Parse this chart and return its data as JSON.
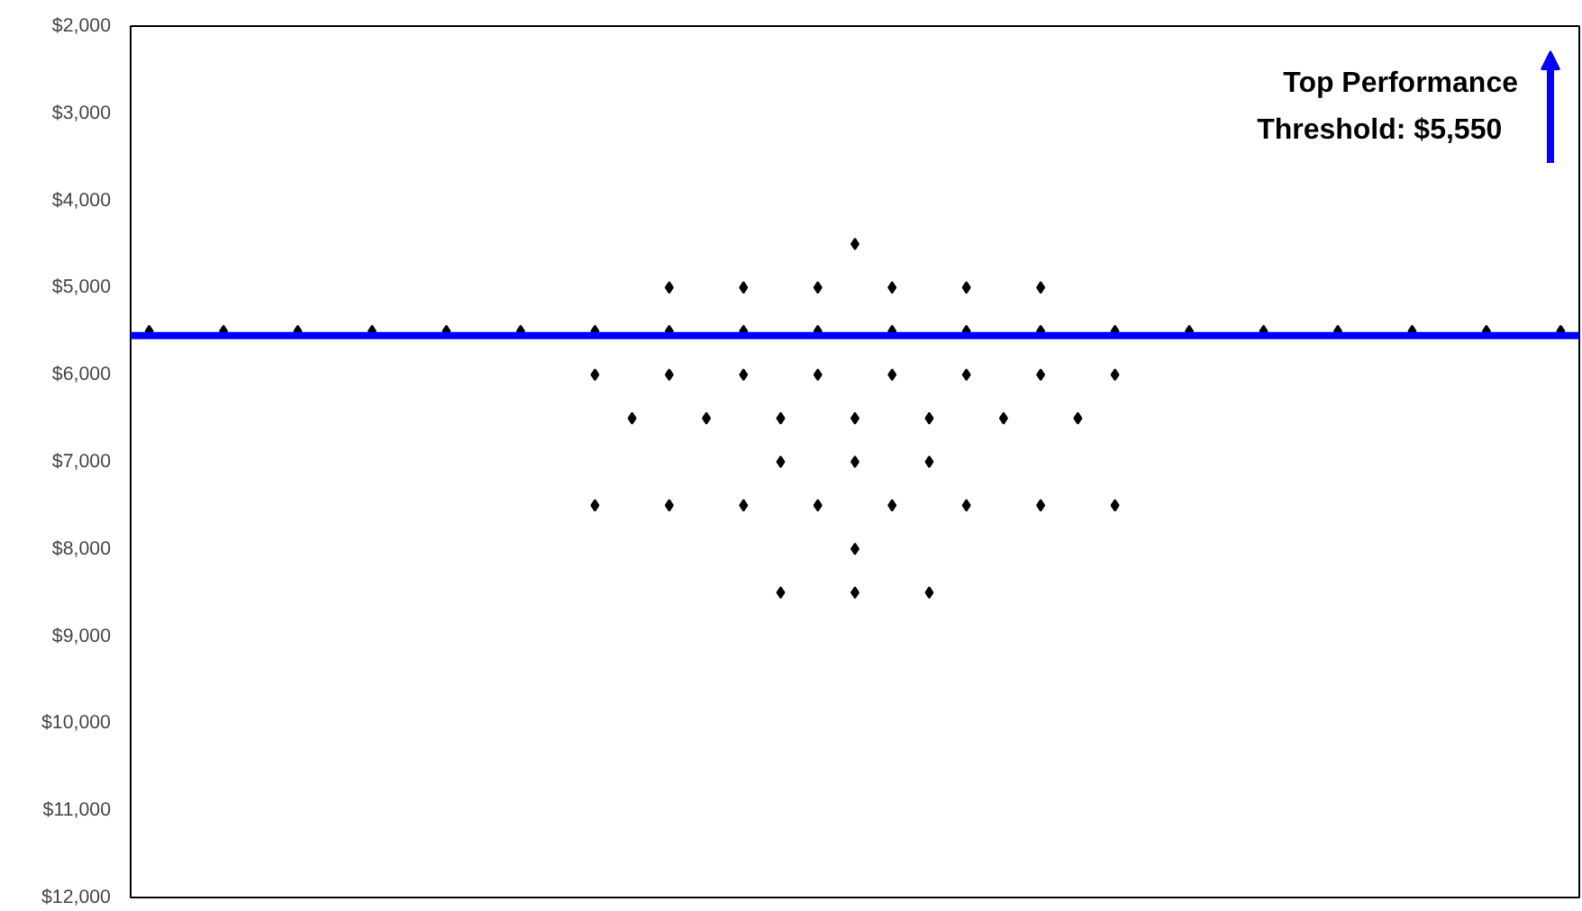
{
  "chart_data": {
    "type": "scatter",
    "categories": [
      null,
      null,
      null,
      null,
      null,
      null,
      null,
      null,
      null,
      null,
      null,
      null,
      null,
      null,
      null,
      null,
      null,
      null,
      null,
      null,
      null,
      null,
      null,
      null,
      null,
      null,
      null,
      null,
      null,
      null,
      null,
      null,
      null,
      null,
      null,
      null,
      null,
      null,
      null
    ],
    "ylim": [
      12000,
      2000
    ],
    "yticks": [
      {
        "value": 2000,
        "label": "$2,000"
      },
      {
        "value": 3000,
        "label": "$3,000"
      },
      {
        "value": 4000,
        "label": "$4,000"
      },
      {
        "value": 5000,
        "label": "$5,000"
      },
      {
        "value": 6000,
        "label": "$6,000"
      },
      {
        "value": 7000,
        "label": "$7,000"
      },
      {
        "value": 8000,
        "label": "$8,000"
      },
      {
        "value": 9000,
        "label": "$9,000"
      },
      {
        "value": 10000,
        "label": "$10,000"
      },
      {
        "value": 11000,
        "label": "$11,000"
      },
      {
        "value": 12000,
        "label": "$12,000"
      }
    ],
    "tick_labels": "y",
    "marker": "diamond",
    "series": [
      {
        "color": "#000000",
        "values": [
          null,
          null,
          null,
          null,
          null,
          null,
          null,
          null,
          null,
          null,
          null,
          null,
          null,
          null,
          null,
          null,
          null,
          null,
          null,
          4500,
          null,
          null,
          null,
          null,
          null,
          null,
          null,
          null,
          null,
          null,
          null,
          null,
          null,
          null,
          null,
          null,
          null,
          null,
          null
        ]
      },
      {
        "color": "#000000",
        "values": [
          null,
          null,
          null,
          null,
          null,
          null,
          null,
          null,
          null,
          null,
          null,
          null,
          null,
          null,
          5000,
          null,
          5000,
          null,
          5000,
          null,
          5000,
          null,
          5000,
          null,
          5000,
          null,
          null,
          null,
          null,
          null,
          null,
          null,
          null,
          null,
          null,
          null,
          null,
          null,
          null
        ]
      },
      {
        "color": "#000000",
        "values": [
          5500,
          null,
          5500,
          null,
          5500,
          null,
          5500,
          null,
          5500,
          null,
          5500,
          null,
          5500,
          null,
          5500,
          null,
          5500,
          null,
          5500,
          null,
          5500,
          null,
          5500,
          null,
          5500,
          null,
          5500,
          null,
          5500,
          null,
          5500,
          null,
          5500,
          null,
          5500,
          null,
          5500,
          null,
          5500
        ]
      },
      {
        "color": "#000000",
        "values": [
          null,
          null,
          null,
          null,
          null,
          null,
          null,
          null,
          null,
          null,
          null,
          null,
          6000,
          null,
          6000,
          null,
          6000,
          null,
          6000,
          null,
          6000,
          null,
          6000,
          null,
          6000,
          null,
          6000,
          null,
          null,
          null,
          null,
          null,
          null,
          null,
          null,
          null,
          null,
          null,
          null
        ]
      },
      {
        "color": "#000000",
        "values": [
          null,
          null,
          null,
          null,
          null,
          null,
          null,
          null,
          null,
          null,
          null,
          null,
          null,
          6500,
          null,
          6500,
          null,
          6500,
          null,
          6500,
          null,
          6500,
          null,
          6500,
          null,
          6500,
          null,
          null,
          null,
          null,
          null,
          null,
          null,
          null,
          null,
          null,
          null,
          null,
          null
        ]
      },
      {
        "color": "#000000",
        "values": [
          null,
          null,
          null,
          null,
          null,
          null,
          null,
          null,
          null,
          null,
          null,
          null,
          null,
          null,
          null,
          null,
          null,
          7000,
          null,
          7000,
          null,
          7000,
          null,
          null,
          null,
          null,
          null,
          null,
          null,
          null,
          null,
          null,
          null,
          null,
          null,
          null,
          null,
          null,
          null
        ]
      },
      {
        "color": "#000000",
        "values": [
          null,
          null,
          null,
          null,
          null,
          null,
          null,
          null,
          null,
          null,
          null,
          null,
          7500,
          null,
          7500,
          null,
          7500,
          null,
          7500,
          null,
          7500,
          null,
          7500,
          null,
          7500,
          null,
          7500,
          null,
          null,
          null,
          null,
          null,
          null,
          null,
          null,
          null,
          null,
          null,
          null
        ]
      },
      {
        "color": "#000000",
        "values": [
          null,
          null,
          null,
          null,
          null,
          null,
          null,
          null,
          null,
          null,
          null,
          null,
          null,
          null,
          null,
          null,
          null,
          null,
          null,
          8000,
          null,
          null,
          null,
          null,
          null,
          null,
          null,
          null,
          null,
          null,
          null,
          null,
          null,
          null,
          null,
          null,
          null,
          null,
          null
        ]
      },
      {
        "color": "#000000",
        "values": [
          null,
          null,
          null,
          null,
          null,
          null,
          null,
          null,
          null,
          null,
          null,
          null,
          null,
          null,
          null,
          null,
          null,
          8500,
          null,
          8500,
          null,
          8500,
          null,
          null,
          null,
          null,
          null,
          null,
          null,
          null,
          null,
          null,
          null,
          null,
          null,
          null,
          null,
          null,
          null
        ]
      }
    ],
    "ref_lines": [
      {
        "axis": "y",
        "value": 5550,
        "color": "#0000ff",
        "line_style": "solid"
      }
    ],
    "annotations": [
      "Top Performance\nThreshold:   $5,550"
    ]
  }
}
